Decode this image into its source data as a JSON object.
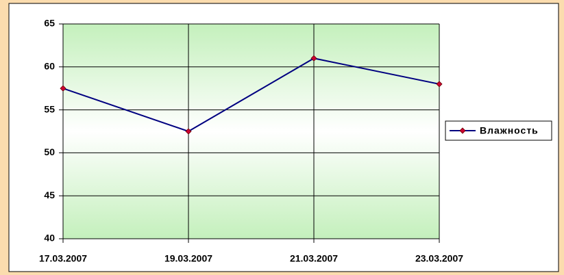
{
  "chart_data": {
    "type": "line",
    "categories": [
      "17.03.2007",
      "19.03.2007",
      "21.03.2007",
      "23.03.2007"
    ],
    "series": [
      {
        "name": "Влажность",
        "color": "#000080",
        "marker_color": "#cc0033",
        "values": [
          57.5,
          52.5,
          61,
          58
        ]
      }
    ],
    "ylim": [
      40,
      65
    ],
    "yticks": [
      40,
      45,
      50,
      55,
      60,
      65
    ],
    "grid": true,
    "legend": "right"
  }
}
